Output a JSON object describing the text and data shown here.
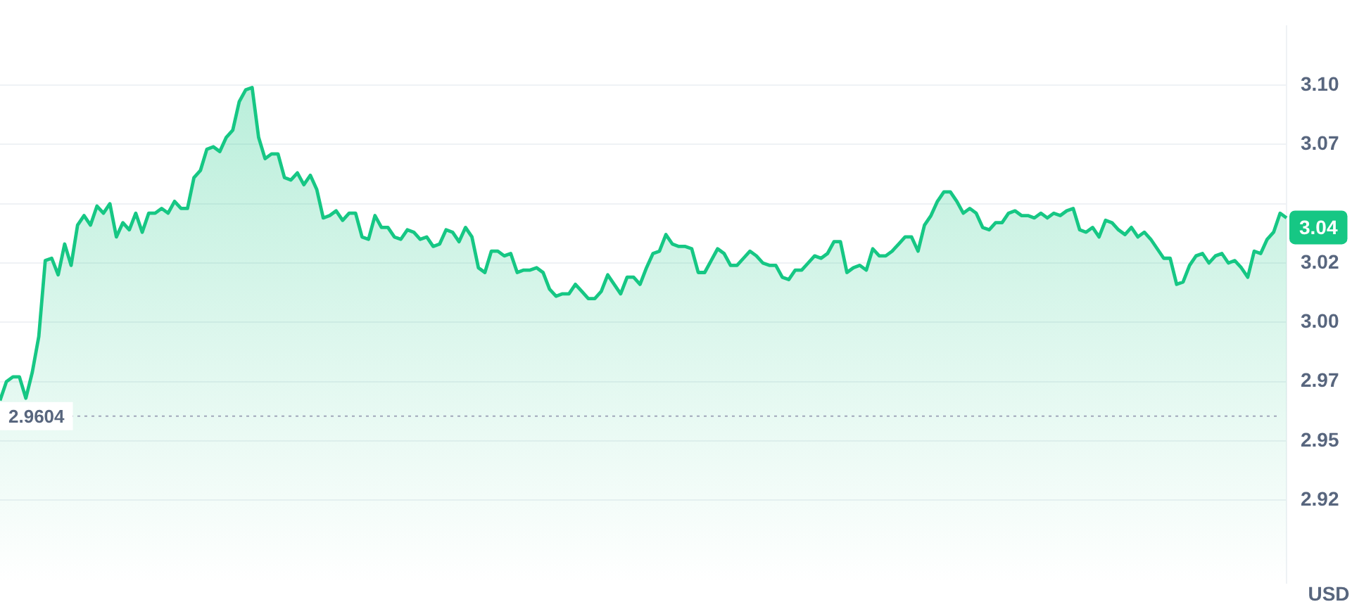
{
  "chart_data": {
    "type": "area",
    "ylabel": "USD",
    "tick_labels": "y",
    "grid": "y",
    "legend": false,
    "marker": "none",
    "line_style": "solid",
    "ylim": [
      2.89,
      3.125
    ],
    "yticks": [
      {
        "value": 2.925,
        "label": "2.92"
      },
      {
        "value": 2.95,
        "label": "2.95"
      },
      {
        "value": 2.975,
        "label": "2.97"
      },
      {
        "value": 3,
        "label": "3.00"
      },
      {
        "value": 3.025,
        "label": "3.02"
      },
      {
        "value": 3.05,
        "label": null
      },
      {
        "value": 3.075,
        "label": "3.07"
      },
      {
        "value": 3.1,
        "label": "3.10"
      }
    ],
    "ref_lines": [
      {
        "axis": "y",
        "value": 2.9604,
        "label": "2.9604",
        "color": "#a1a7bb",
        "line_style": "dotted"
      }
    ],
    "annotations": [
      {
        "text": "3.04",
        "y": 3.04
      }
    ],
    "categories": [
      null,
      null,
      null,
      null,
      null,
      null,
      null,
      null,
      null,
      null,
      null,
      null,
      null,
      null,
      null,
      null,
      null,
      null,
      null,
      null,
      null,
      null,
      null,
      null,
      null,
      null,
      null,
      null,
      null,
      null,
      null,
      null,
      null,
      null,
      null,
      null,
      null,
      null,
      null,
      null,
      null,
      null,
      null,
      null,
      null,
      null,
      null,
      null,
      null,
      null,
      null,
      null,
      null,
      null,
      null,
      null,
      null,
      null,
      null,
      null,
      null,
      null,
      null,
      null,
      null,
      null,
      null,
      null,
      null,
      null,
      null,
      null,
      null,
      null,
      null,
      null,
      null,
      null,
      null,
      null,
      null,
      null,
      null,
      null,
      null,
      null,
      null,
      null,
      null,
      null,
      null,
      null,
      null,
      null,
      null,
      null,
      null,
      null,
      null,
      null,
      null,
      null,
      null,
      null,
      null,
      null,
      null,
      null,
      null,
      null,
      null,
      null,
      null,
      null,
      null,
      null,
      null,
      null,
      null,
      null,
      null,
      null,
      null,
      null,
      null,
      null,
      null,
      null,
      null,
      null,
      null,
      null,
      null,
      null,
      null,
      null,
      null,
      null,
      null,
      null,
      null,
      null,
      null,
      null,
      null,
      null,
      null,
      null,
      null,
      null,
      null,
      null,
      null,
      null,
      null,
      null,
      null,
      null,
      null,
      null,
      null,
      null,
      null,
      null,
      null,
      null,
      null,
      null,
      null,
      null,
      null,
      null,
      null,
      null,
      null,
      null,
      null,
      null,
      null,
      null,
      null,
      null,
      null,
      null,
      null,
      null,
      null,
      null,
      null,
      null,
      null,
      null,
      null,
      null,
      null,
      null,
      null,
      null,
      null,
      null
    ],
    "series": [
      {
        "color": "#16c784",
        "values": [
          2.967,
          2.975,
          2.977,
          2.977,
          2.968,
          2.979,
          2.994,
          3.026,
          3.027,
          3.02,
          3.033,
          3.024,
          3.041,
          3.045,
          3.041,
          3.049,
          3.046,
          3.05,
          3.036,
          3.042,
          3.039,
          3.046,
          3.038,
          3.046,
          3.046,
          3.048,
          3.046,
          3.051,
          3.048,
          3.048,
          3.061,
          3.064,
          3.073,
          3.074,
          3.072,
          3.078,
          3.081,
          3.093,
          3.098,
          3.099,
          3.078,
          3.069,
          3.071,
          3.071,
          3.061,
          3.06,
          3.063,
          3.058,
          3.062,
          3.056,
          3.044,
          3.045,
          3.047,
          3.043,
          3.046,
          3.046,
          3.036,
          3.035,
          3.045,
          3.04,
          3.04,
          3.036,
          3.035,
          3.039,
          3.038,
          3.035,
          3.036,
          3.032,
          3.033,
          3.039,
          3.038,
          3.034,
          3.04,
          3.036,
          3.023,
          3.021,
          3.03,
          3.03,
          3.028,
          3.029,
          3.021,
          3.022,
          3.022,
          3.023,
          3.021,
          3.014,
          3.011,
          3.012,
          3.012,
          3.016,
          3.013,
          3.01,
          3.01,
          3.013,
          3.02,
          3.016,
          3.012,
          3.019,
          3.019,
          3.016,
          3.023,
          3.029,
          3.03,
          3.037,
          3.033,
          3.032,
          3.032,
          3.031,
          3.021,
          3.021,
          3.026,
          3.031,
          3.029,
          3.024,
          3.024,
          3.027,
          3.03,
          3.028,
          3.025,
          3.024,
          3.024,
          3.019,
          3.018,
          3.022,
          3.022,
          3.025,
          3.028,
          3.027,
          3.029,
          3.034,
          3.034,
          3.021,
          3.023,
          3.024,
          3.022,
          3.031,
          3.028,
          3.028,
          3.03,
          3.033,
          3.036,
          3.036,
          3.03,
          3.041,
          3.045,
          3.051,
          3.055,
          3.055,
          3.051,
          3.046,
          3.048,
          3.046,
          3.04,
          3.039,
          3.042,
          3.042,
          3.046,
          3.047,
          3.045,
          3.045,
          3.044,
          3.046,
          3.044,
          3.046,
          3.045,
          3.047,
          3.048,
          3.039,
          3.038,
          3.04,
          3.036,
          3.043,
          3.042,
          3.039,
          3.037,
          3.04,
          3.036,
          3.038,
          3.035,
          3.031,
          3.027,
          3.027,
          3.016,
          3.017,
          3.024,
          3.028,
          3.029,
          3.025,
          3.028,
          3.029,
          3.025,
          3.026,
          3.023,
          3.019,
          3.03,
          3.029,
          3.035,
          3.038,
          3.046,
          3.044
        ]
      }
    ]
  }
}
